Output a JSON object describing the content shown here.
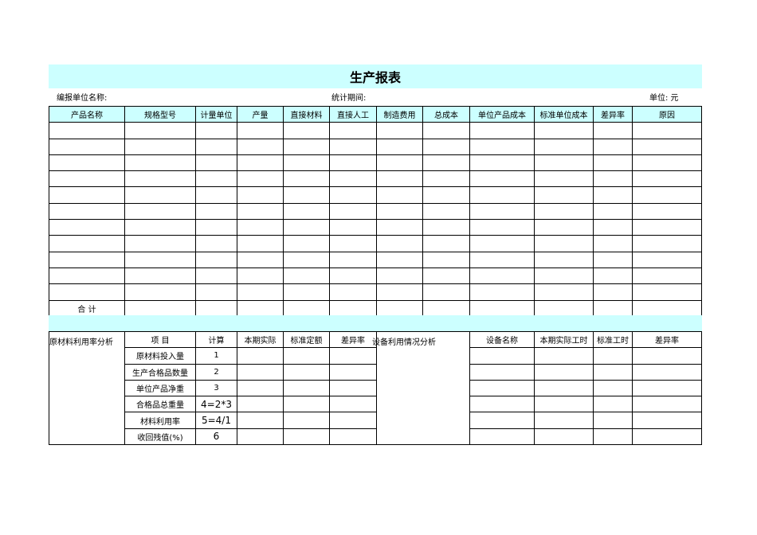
{
  "title": "生产报表",
  "info": {
    "unit_name_label": "编报单位名称:",
    "period_label": "统计期间:",
    "currency_label": "单位:  元"
  },
  "colors": {
    "header_bg": "#ccffff"
  },
  "main_table": {
    "headers": [
      "产品名称",
      "规格型号",
      "计量单位",
      "产量",
      "直接材料",
      "直接人工",
      "制造费用",
      "总成本",
      "单位产品成本",
      "标准单位成本",
      "差异率",
      "原因"
    ],
    "empty_rows": 11,
    "total_label": "合  计"
  },
  "analysis": {
    "material_label": "原材料利用率分析",
    "material_headers": [
      "项   目",
      "计算",
      "本期实际",
      "标准定额",
      "差异率"
    ],
    "material_rows": [
      {
        "item": "原材料投入量",
        "calc": "1"
      },
      {
        "item": "生产合格品数量",
        "calc": "2"
      },
      {
        "item": "单位产品净重",
        "calc": "3"
      },
      {
        "item": "合格品总重量",
        "calc": "4=2*3"
      },
      {
        "item": "材料利用率",
        "calc": "5=4/1"
      },
      {
        "item": "收回残值(%)",
        "calc": "6"
      }
    ],
    "equipment_label": "设备利用情况分析",
    "equipment_headers": [
      "设备名称",
      "本期实际工时",
      "标准工时",
      "差异率"
    ]
  }
}
